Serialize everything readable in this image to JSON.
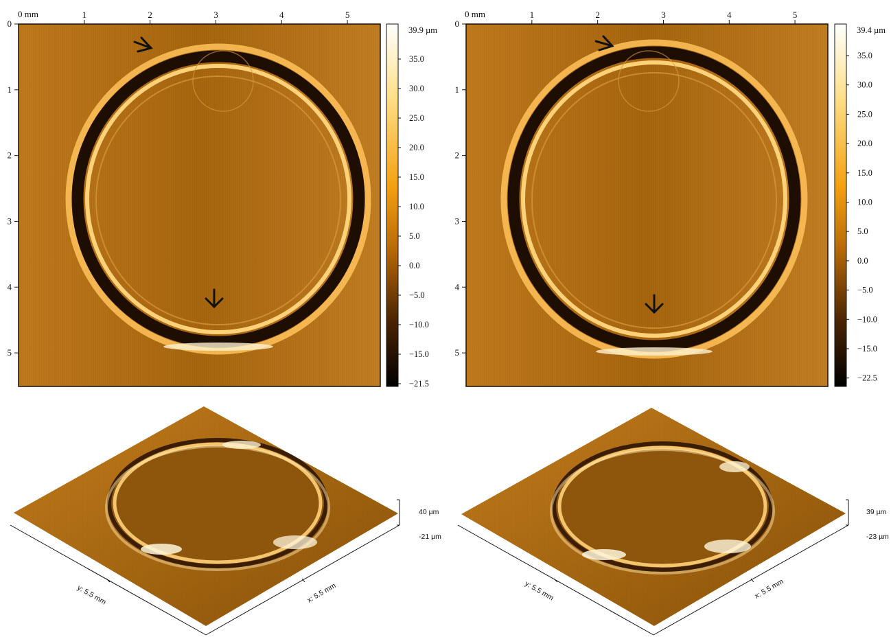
{
  "panels": [
    {
      "id": "left",
      "x_unit_label": "0 mm",
      "x_ticks": [
        "1",
        "2",
        "3",
        "4",
        "5"
      ],
      "y_ticks": [
        "0",
        "1",
        "2",
        "3",
        "4",
        "5"
      ],
      "colorbar": {
        "max_label": "39.9 µm",
        "labels": [
          "35.0",
          "30.0",
          "25.0",
          "20.0",
          "15.0",
          "10.0",
          "5.0",
          "0.0",
          "−5.0",
          "−10.0",
          "−15.0",
          "−21.5"
        ]
      },
      "surface3d": {
        "z_max_label": "40 µm",
        "z_min_label": "-21 µm",
        "x_axis_label": "x: 5.5 mm",
        "y_axis_label": "y: 5.5 mm"
      }
    },
    {
      "id": "right",
      "x_unit_label": "0 mm",
      "x_ticks": [
        "1",
        "2",
        "3",
        "4",
        "5"
      ],
      "y_ticks": [
        "0",
        "1",
        "2",
        "3",
        "4",
        "5"
      ],
      "colorbar": {
        "max_label": "39.4 µm",
        "labels": [
          "35.0",
          "30.0",
          "25.0",
          "20.0",
          "15.0",
          "10.0",
          "5.0",
          "0.0",
          "−5.0",
          "−10.0",
          "−15.0",
          "−22.5"
        ]
      },
      "surface3d": {
        "z_max_label": "39 µm",
        "z_min_label": "-23 µm",
        "x_axis_label": "x: 5.5 mm",
        "y_axis_label": "y: 5.5 mm"
      }
    }
  ],
  "colors": {
    "background": "#b8741a",
    "ring_dark": "#2a1502",
    "ring_bright": "#ffd27a",
    "colorbar_top": "#ffffff",
    "colorbar_mid": "#f4a010",
    "colorbar_bottom": "#000000"
  },
  "annotation_icons": [
    "arrow-icon",
    "arrow-icon"
  ]
}
